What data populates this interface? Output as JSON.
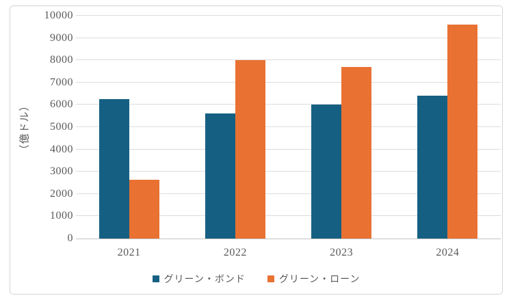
{
  "chart_data": {
    "type": "bar",
    "title": "",
    "categories": [
      "2021",
      "2022",
      "2023",
      "2024"
    ],
    "series": [
      {
        "name": "グリーン・ボンド",
        "color": "#156082",
        "values": [
          6250,
          5600,
          6000,
          6400
        ]
      },
      {
        "name": "グリーン・ローン",
        "color": "#E97132",
        "values": [
          2650,
          8000,
          7700,
          9600
        ]
      }
    ],
    "xlabel": "",
    "ylabel": "（億ドル）",
    "ylim": [
      0,
      10000
    ],
    "ytick_step": 1000,
    "yticks": [
      0,
      1000,
      2000,
      3000,
      4000,
      5000,
      6000,
      7000,
      8000,
      9000,
      10000
    ],
    "grid": true,
    "legend_position": "bottom",
    "colors": {
      "gridline": "#dcdcdc",
      "axis_line": "#c3c3c3",
      "text": "#595959",
      "frame_border": "#d4d4d4",
      "background": "#ffffff"
    }
  }
}
